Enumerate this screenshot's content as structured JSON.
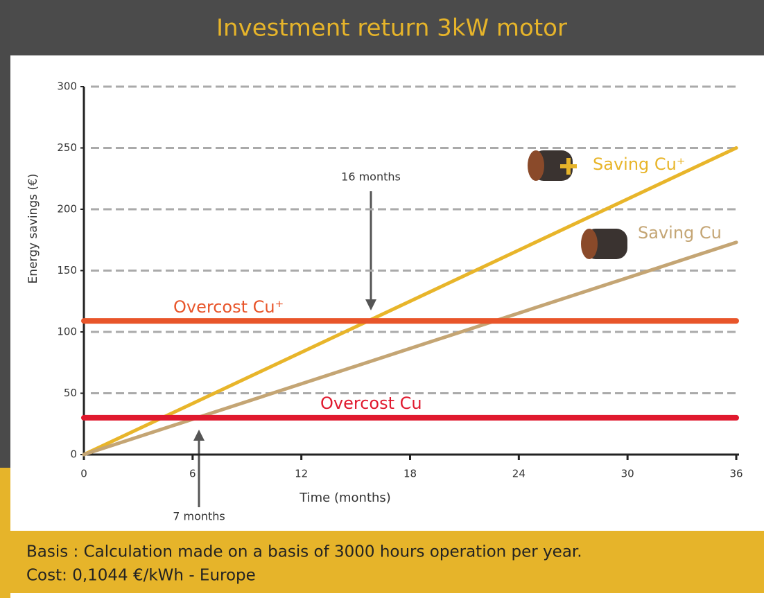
{
  "chart_data": {
    "type": "line",
    "title": "Investment return 3kW motor",
    "x_label": "Time (months)",
    "y_label": "Energy savings (€)",
    "xlim": [
      0,
      36
    ],
    "xticks": [
      0,
      6,
      12,
      18,
      24,
      30,
      36
    ],
    "ylim": [
      0,
      300
    ],
    "yticks": [
      0,
      50,
      100,
      150,
      200,
      250,
      300
    ],
    "grid": true,
    "series": [
      {
        "name": "Saving Cu⁺",
        "color": "#e8b52a",
        "x": [
          0,
          36
        ],
        "values": [
          0,
          250
        ]
      },
      {
        "name": "Saving Cu",
        "color": "#c4a574",
        "x": [
          0,
          36
        ],
        "values": [
          0,
          173
        ]
      },
      {
        "name": "Overcost Cu⁺",
        "color": "#e8552a",
        "x": [
          0,
          36
        ],
        "values": [
          109,
          109
        ]
      },
      {
        "name": "Overcost Cu",
        "color": "#e0192e",
        "x": [
          0,
          36
        ],
        "values": [
          30,
          30
        ]
      }
    ],
    "annotations": [
      "16 months",
      "7 months"
    ],
    "footnote": [
      "Basis : Calculation made on a basis of 3000 hours operation per year.",
      "Cost: 0,1044 €/kWh - Europe"
    ]
  }
}
